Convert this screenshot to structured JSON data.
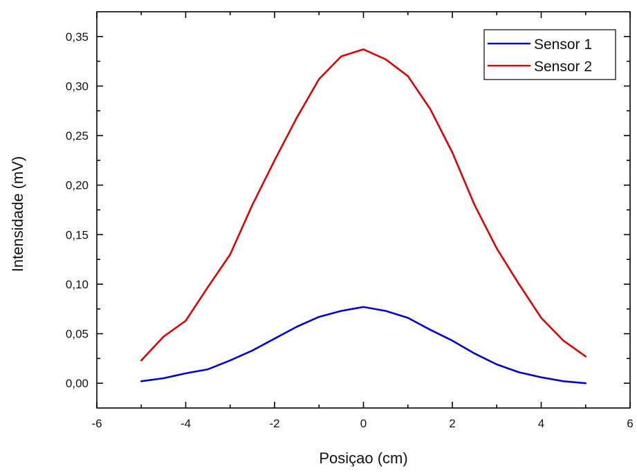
{
  "chart_data": {
    "type": "line",
    "xlabel": "Posiçao (cm)",
    "ylabel": "Intensidade (mV)",
    "xlim": [
      -6,
      6
    ],
    "ylim": [
      -0.025,
      0.375
    ],
    "xticks": [
      -6,
      -4,
      -2,
      0,
      2,
      4,
      6
    ],
    "xtick_labels": [
      "-6",
      "-4",
      "-2",
      "0",
      "2",
      "4",
      "6"
    ],
    "yticks": [
      0,
      0.05,
      0.1,
      0.15,
      0.2,
      0.25,
      0.3,
      0.35
    ],
    "ytick_labels": [
      "0,00",
      "0,05",
      "0,10",
      "0,15",
      "0,20",
      "0,25",
      "0,30",
      "0,35"
    ],
    "grid": false,
    "legend_position": "top-right",
    "x": [
      -5,
      -4.5,
      -4,
      -3.5,
      -3,
      -2.5,
      -2,
      -1.5,
      -1,
      -0.5,
      0,
      0.5,
      1,
      1.5,
      2,
      2.5,
      3,
      3.5,
      4,
      4.5,
      5
    ],
    "series": [
      {
        "name": "Sensor 1",
        "color": "#0000cc",
        "values": [
          0.002,
          0.005,
          0.01,
          0.014,
          0.023,
          0.033,
          0.045,
          0.057,
          0.067,
          0.073,
          0.077,
          0.073,
          0.066,
          0.054,
          0.043,
          0.03,
          0.019,
          0.011,
          0.006,
          0.002,
          0.0
        ]
      },
      {
        "name": "Sensor 2",
        "color": "#dd0000",
        "values": [
          0.023,
          0.047,
          0.063,
          0.097,
          0.13,
          0.18,
          0.225,
          0.268,
          0.307,
          0.33,
          0.337,
          0.327,
          0.31,
          0.277,
          0.233,
          0.18,
          0.136,
          0.1,
          0.066,
          0.043,
          0.027
        ]
      }
    ]
  }
}
